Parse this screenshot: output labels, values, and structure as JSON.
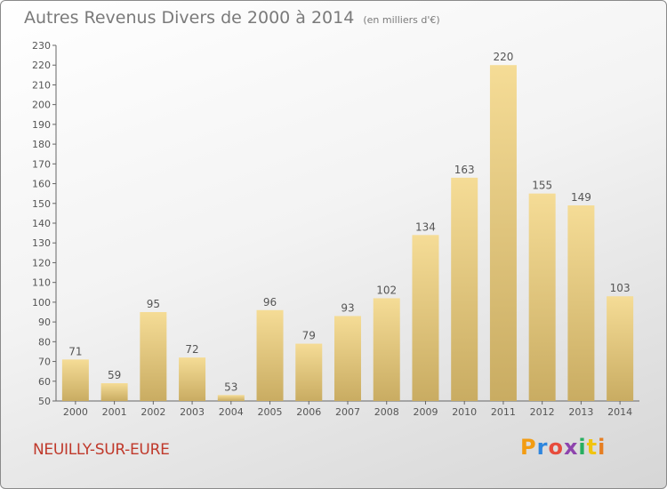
{
  "title": "Autres Revenus Divers de 2000 à 2014",
  "subtitle": "(en milliers d'€)",
  "town": "NEUILLY-SUR-EURE",
  "brand": "Proxiti",
  "brand_colors": [
    "#f39c12",
    "#2e86de",
    "#e74c3c",
    "#8e44ad",
    "#27ae60",
    "#f1c40f",
    "#e67e22"
  ],
  "colors": {
    "bar_light": "#f5dc96",
    "bar_dark": "#c9ac62",
    "town": "#c0392b"
  },
  "chart_data": {
    "type": "bar",
    "title": "Autres Revenus Divers de 2000 à 2014",
    "subtitle": "(en milliers d'€)",
    "categories": [
      "2000",
      "2001",
      "2002",
      "2003",
      "2004",
      "2005",
      "2006",
      "2007",
      "2008",
      "2009",
      "2010",
      "2011",
      "2012",
      "2013",
      "2014"
    ],
    "values": [
      71,
      59,
      95,
      72,
      53,
      96,
      79,
      93,
      102,
      134,
      163,
      220,
      155,
      149,
      103
    ],
    "ylim": [
      50,
      230
    ],
    "yticks": [
      50,
      60,
      70,
      80,
      90,
      100,
      110,
      120,
      130,
      140,
      150,
      160,
      170,
      180,
      190,
      200,
      210,
      220,
      230
    ],
    "grid": false,
    "legend": "none"
  }
}
